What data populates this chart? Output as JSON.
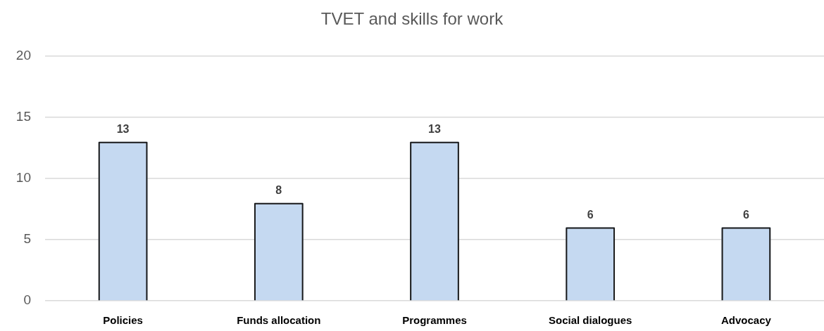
{
  "chart_data": {
    "type": "bar",
    "title": "TVET and skills for work",
    "categories": [
      "Policies",
      "Funds allocation",
      "Programmes",
      "Social dialogues",
      "Advocacy"
    ],
    "values": [
      13,
      8,
      13,
      6,
      6
    ],
    "color": "#c5d9f1",
    "ylim": [
      0,
      20
    ],
    "yticks": [
      0,
      5,
      10,
      15,
      20
    ],
    "grid": "y",
    "data_labels": true
  }
}
